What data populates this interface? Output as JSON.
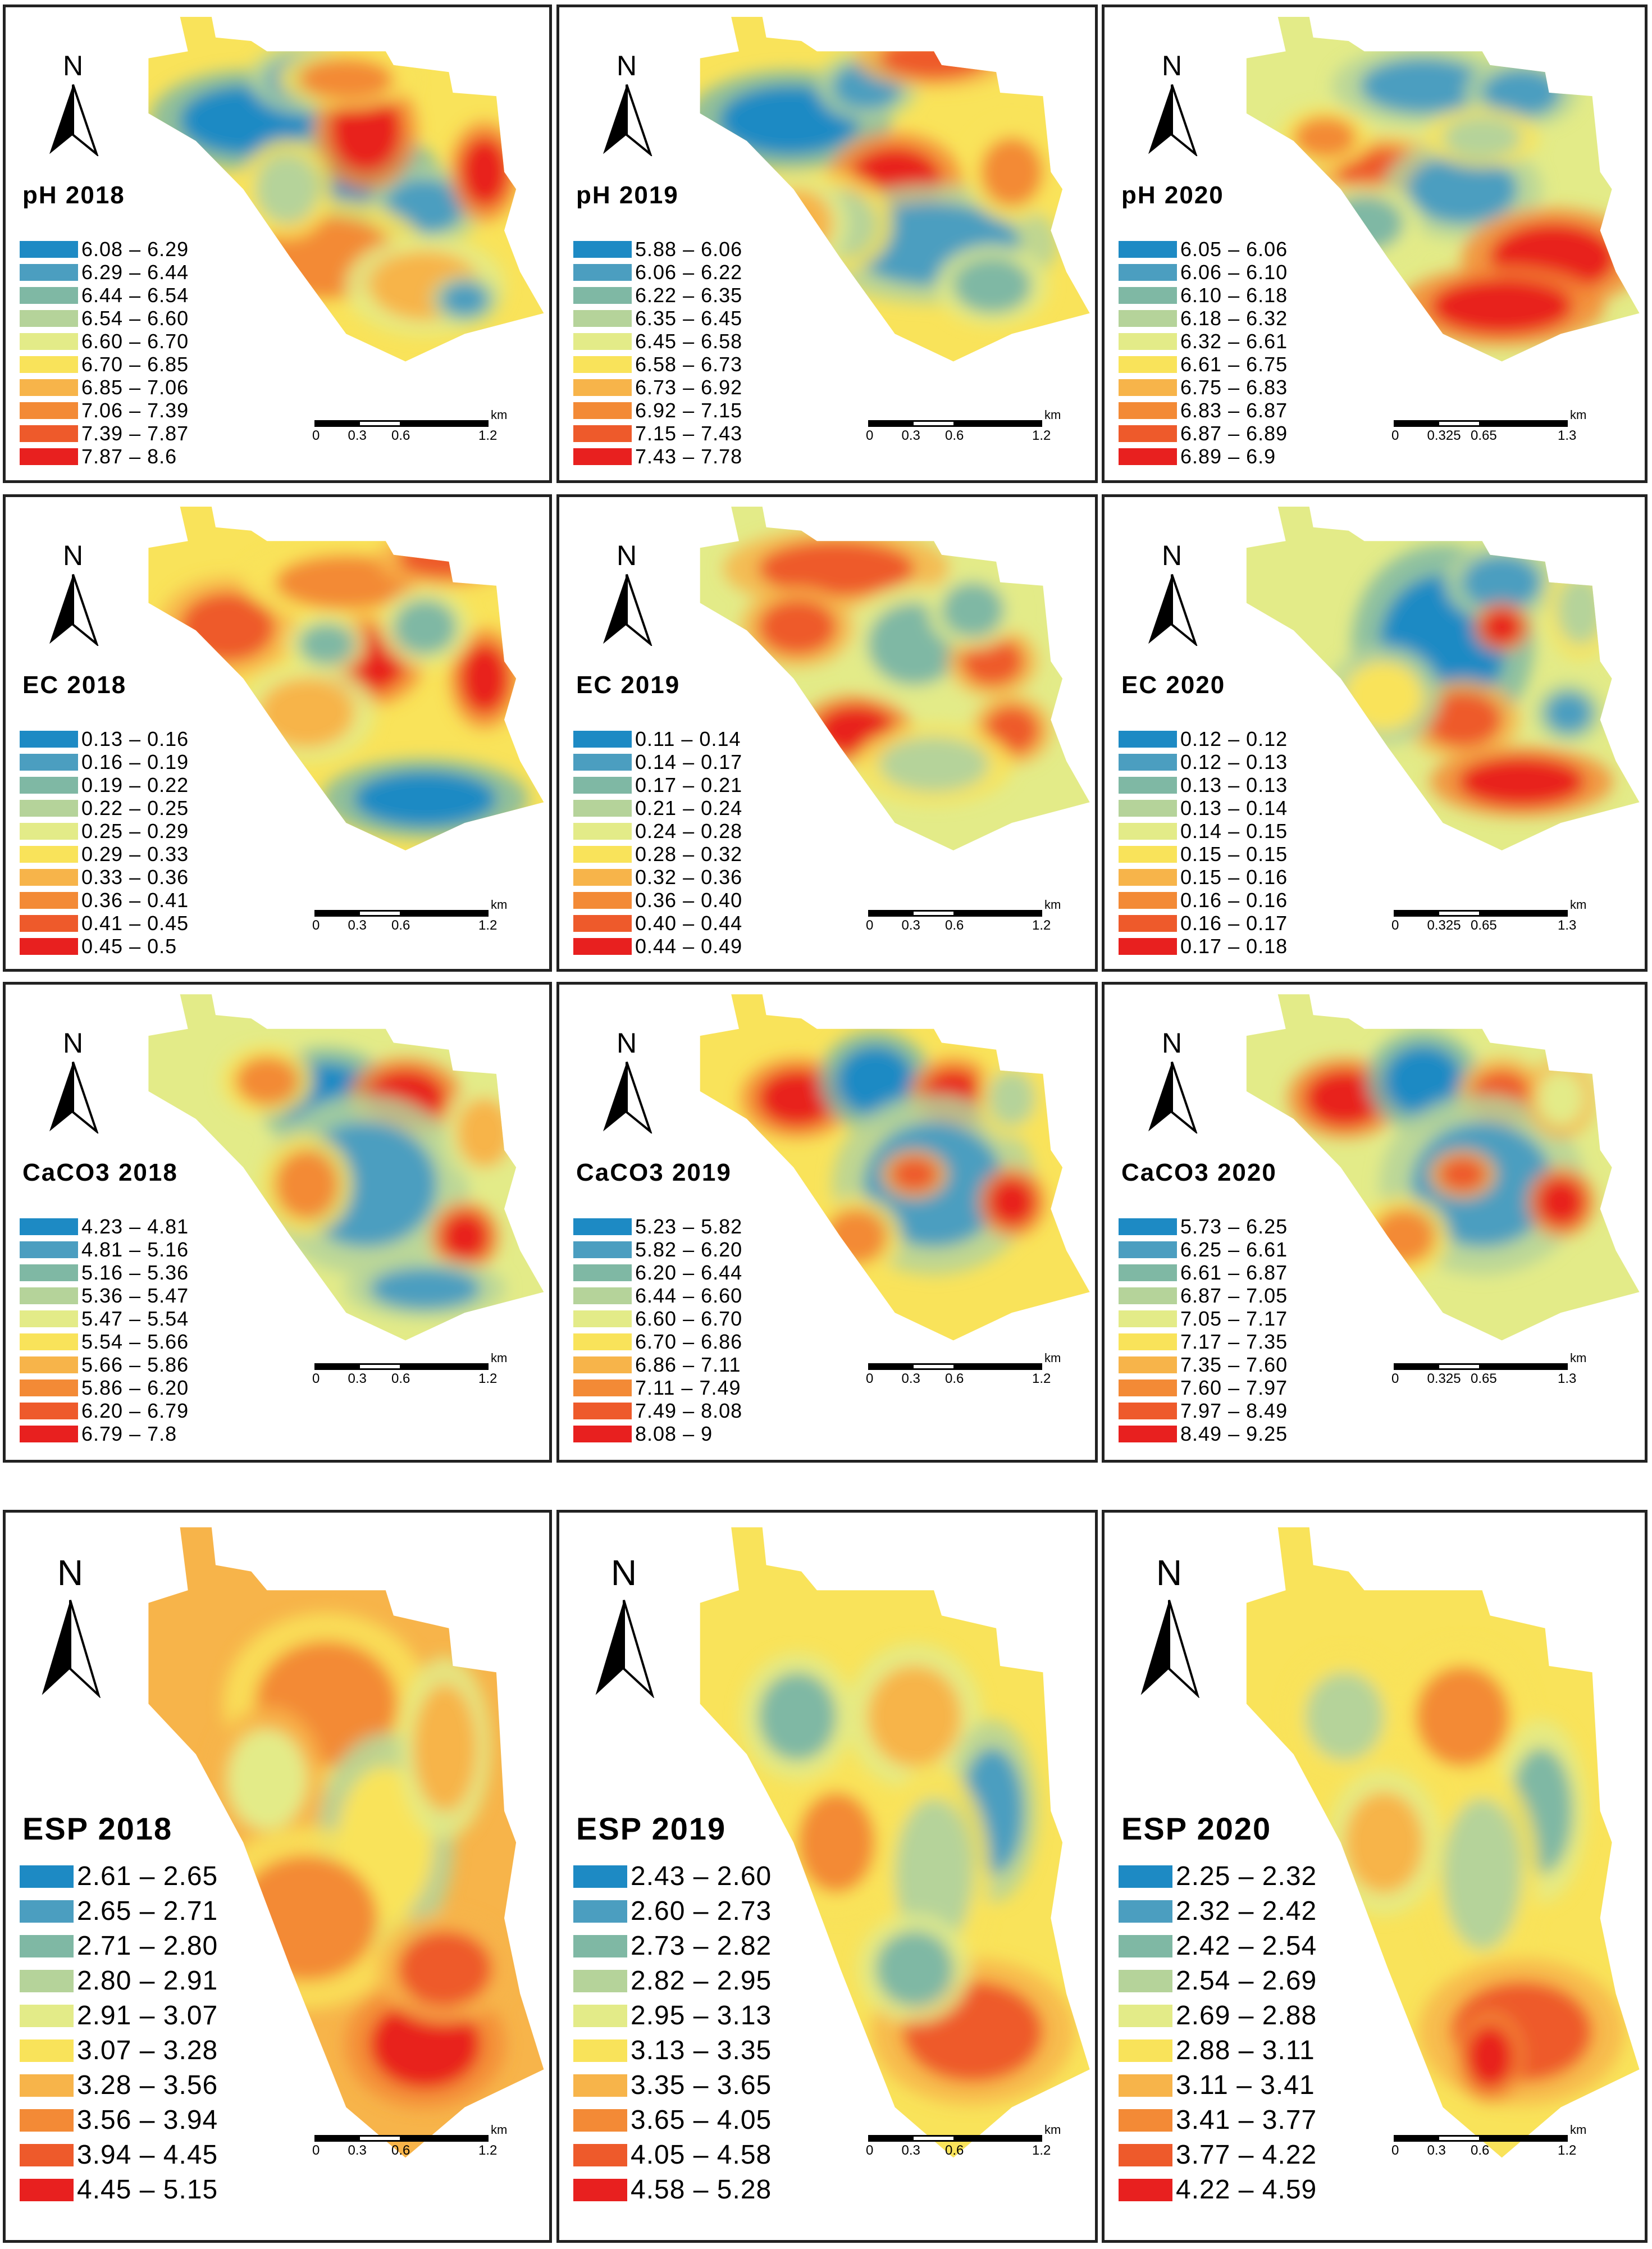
{
  "figure": {
    "colors": [
      "#1d8ac4",
      "#4b9ec0",
      "#7fb8a4",
      "#b5d39a",
      "#e3eb88",
      "#f9e35a",
      "#f7b44a",
      "#f38a36",
      "#ee5a2b",
      "#e8201f"
    ],
    "north_label": "N",
    "scale_unit": "km",
    "panels": [
      {
        "title": "pH 2018",
        "classes": [
          "6.08 – 6.29",
          "6.29 – 6.44",
          "6.44 – 6.54",
          "6.54 – 6.60",
          "6.60 – 6.70",
          "6.70 – 6.85",
          "6.85 – 7.06",
          "7.06 – 7.39",
          "7.39 – 7.87",
          "7.87 – 8.6"
        ],
        "scale": [
          "0",
          "0.3",
          "0.6",
          "1.2"
        ]
      },
      {
        "title": "pH 2019",
        "classes": [
          "5.88 – 6.06",
          "6.06 – 6.22",
          "6.22 – 6.35",
          "6.35 – 6.45",
          "6.45 – 6.58",
          "6.58 – 6.73",
          "6.73 – 6.92",
          "6.92 – 7.15",
          "7.15 – 7.43",
          "7.43 – 7.78"
        ],
        "scale": [
          "0",
          "0.3",
          "0.6",
          "1.2"
        ]
      },
      {
        "title": "pH 2020",
        "classes": [
          "6.05 – 6.06",
          "6.06 – 6.10",
          "6.10 – 6.18",
          "6.18 – 6.32",
          "6.32 – 6.61",
          "6.61 – 6.75",
          "6.75 – 6.83",
          "6.83 – 6.87",
          "6.87 – 6.89",
          "6.89 – 6.9"
        ],
        "scale": [
          "0",
          "0.325",
          "0.65",
          "1.3"
        ]
      },
      {
        "title": "EC 2018",
        "classes": [
          "0.13 – 0.16",
          "0.16 – 0.19",
          "0.19 – 0.22",
          "0.22 – 0.25",
          "0.25 – 0.29",
          "0.29 – 0.33",
          "0.33 – 0.36",
          "0.36 – 0.41",
          "0.41 – 0.45",
          "0.45 – 0.5"
        ],
        "scale": [
          "0",
          "0.3",
          "0.6",
          "1.2"
        ]
      },
      {
        "title": "EC 2019",
        "classes": [
          "0.11 – 0.14",
          "0.14 – 0.17",
          "0.17 – 0.21",
          "0.21 – 0.24",
          "0.24 – 0.28",
          "0.28 – 0.32",
          "0.32 – 0.36",
          "0.36 – 0.40",
          "0.40 – 0.44",
          "0.44 – 0.49"
        ],
        "scale": [
          "0",
          "0.3",
          "0.6",
          "1.2"
        ]
      },
      {
        "title": "EC 2020",
        "classes": [
          "0.12 – 0.12",
          "0.12 – 0.13",
          "0.13 – 0.13",
          "0.13 – 0.14",
          "0.14 – 0.15",
          "0.15 – 0.15",
          "0.15 – 0.16",
          "0.16 – 0.16",
          "0.16 – 0.17",
          "0.17 – 0.18"
        ],
        "scale": [
          "0",
          "0.325",
          "0.65",
          "1.3"
        ]
      },
      {
        "title": "CaCO3 2018",
        "classes": [
          "4.23 – 4.81",
          "4.81 – 5.16",
          "5.16 – 5.36",
          "5.36 – 5.47",
          "5.47 – 5.54",
          "5.54 – 5.66",
          "5.66 – 5.86",
          "5.86 – 6.20",
          "6.20 – 6.79",
          "6.79 – 7.8"
        ],
        "scale": [
          "0",
          "0.3",
          "0.6",
          "1.2"
        ]
      },
      {
        "title": "CaCO3 2019",
        "classes": [
          "5.23 – 5.82",
          "5.82 – 6.20",
          "6.20 – 6.44",
          "6.44 – 6.60",
          "6.60 – 6.70",
          "6.70 – 6.86",
          "6.86 – 7.11",
          "7.11 – 7.49",
          "7.49 – 8.08",
          "8.08 – 9"
        ],
        "scale": [
          "0",
          "0.3",
          "0.6",
          "1.2"
        ]
      },
      {
        "title": "CaCO3 2020",
        "classes": [
          "5.73 – 6.25",
          "6.25 – 6.61",
          "6.61 – 6.87",
          "6.87 – 7.05",
          "7.05 – 7.17",
          "7.17 – 7.35",
          "7.35 – 7.60",
          "7.60 – 7.97",
          "7.97 – 8.49",
          "8.49 – 9.25"
        ],
        "scale": [
          "0",
          "0.325",
          "0.65",
          "1.3"
        ]
      },
      {
        "title": "ESP 2018",
        "classes": [
          "2.61 – 2.65",
          "2.65 – 2.71",
          "2.71 – 2.80",
          "2.80 – 2.91",
          "2.91 – 3.07",
          "3.07 – 3.28",
          "3.28 – 3.56",
          "3.56 – 3.94",
          "3.94 – 4.45",
          "4.45 – 5.15"
        ],
        "scale": [
          "0",
          "0.3",
          "0.6",
          "1.2"
        ]
      },
      {
        "title": "ESP 2019",
        "classes": [
          "2.43 – 2.60",
          "2.60 – 2.73",
          "2.73 – 2.82",
          "2.82 – 2.95",
          "2.95 – 3.13",
          "3.13 – 3.35",
          "3.35 – 3.65",
          "3.65 – 4.05",
          "4.05 – 4.58",
          "4.58 – 5.28"
        ],
        "scale": [
          "0",
          "0.3",
          "0.6",
          "1.2"
        ]
      },
      {
        "title": "ESP 2020",
        "classes": [
          "2.25 – 2.32",
          "2.32 – 2.42",
          "2.42 – 2.54",
          "2.54 – 2.69",
          "2.69 – 2.88",
          "2.88 – 3.11",
          "3.11 – 3.41",
          "3.41 – 3.77",
          "3.77 – 4.22",
          "4.22 – 4.59"
        ],
        "scale": [
          "0",
          "0.3",
          "0.6",
          "1.2"
        ]
      }
    ]
  }
}
